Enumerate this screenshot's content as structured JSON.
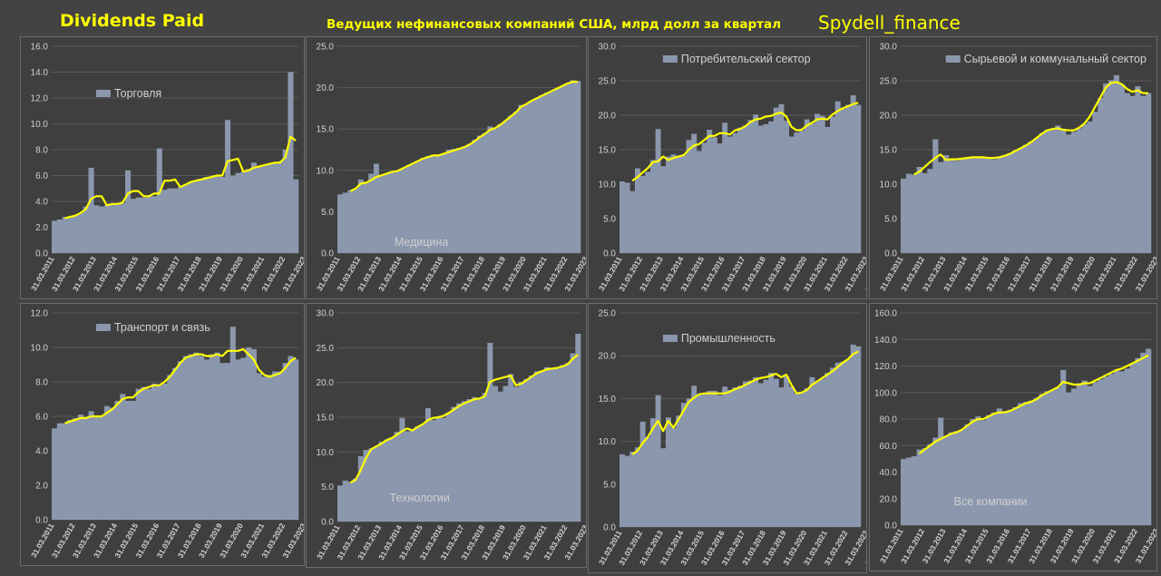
{
  "header": {
    "title": "Dividends Paid",
    "subtitle": "Ведущих нефинансовых компаний США, млрд долл за квартал",
    "brand": "Spydell_finance"
  },
  "colors": {
    "bar": "#8b97ad",
    "trend": "#ffff00",
    "background": "#3f3f3f",
    "grid": "#5a5a5a",
    "text": "#d0d0d0"
  },
  "x_tick_labels": [
    "31.03.2011",
    "31.03.2012",
    "31.03.2013",
    "31.03.2014",
    "31.03.2015",
    "31.03.2016",
    "31.03.2017",
    "31.03.2018",
    "31.03.2019",
    "31.03.2020",
    "31.03.2021",
    "31.03.2022",
    "31.03.2023",
    "31.03.2024"
  ],
  "chart_data": [
    {
      "type": "bar",
      "legend": "Торговля",
      "ylim": [
        0,
        16
      ],
      "ystep": 2,
      "legend_pos": "upper-left",
      "values": [
        2.5,
        2.6,
        2.8,
        2.8,
        2.9,
        3.1,
        3.6,
        6.6,
        3.7,
        3.6,
        3.7,
        3.8,
        3.8,
        3.9,
        6.4,
        4.2,
        4.3,
        4.3,
        4.4,
        4.4,
        8.1,
        4.9,
        5.0,
        5.0,
        5.1,
        5.3,
        5.5,
        5.6,
        5.7,
        5.9,
        5.9,
        6.0,
        5.9,
        10.3,
        6.0,
        6.2,
        6.3,
        6.5,
        7.0,
        6.7,
        6.8,
        6.9,
        7.0,
        7.1,
        8.0,
        14.0,
        5.7
      ],
      "trend": [
        null,
        null,
        2.7,
        2.8,
        2.9,
        3.1,
        3.4,
        4.2,
        4.4,
        4.4,
        3.7,
        3.8,
        3.8,
        3.9,
        4.6,
        4.8,
        4.8,
        4.4,
        4.4,
        4.6,
        4.6,
        5.6,
        5.6,
        5.7,
        5.1,
        5.3,
        5.5,
        5.6,
        5.7,
        5.8,
        5.9,
        6.0,
        6.0,
        7.1,
        7.2,
        7.3,
        6.3,
        6.4,
        6.6,
        6.7,
        6.8,
        6.9,
        7.0,
        7.0,
        7.4,
        9.0,
        8.7
      ]
    },
    {
      "type": "bar",
      "legend": "Медицина",
      "ylim": [
        0,
        25
      ],
      "ystep": 5,
      "legend_pos": "lower-center",
      "values": [
        7.1,
        7.3,
        7.6,
        7.8,
        8.9,
        8.6,
        9.6,
        10.8,
        9.4,
        9.6,
        9.8,
        9.9,
        10.2,
        10.5,
        10.8,
        11.1,
        11.5,
        11.7,
        11.9,
        11.8,
        12.0,
        12.5,
        12.6,
        12.7,
        12.9,
        13.2,
        13.7,
        14.2,
        14.5,
        15.3,
        15.1,
        15.6,
        16.0,
        16.6,
        17.1,
        17.9,
        18.0,
        18.4,
        18.7,
        19.1,
        19.4,
        19.6,
        19.9,
        20.2,
        20.5,
        20.9,
        20.8
      ],
      "trend": [
        null,
        null,
        7.5,
        7.8,
        8.4,
        8.5,
        8.8,
        9.2,
        9.4,
        9.6,
        9.8,
        9.9,
        10.2,
        10.5,
        10.8,
        11.1,
        11.4,
        11.6,
        11.8,
        11.8,
        12.0,
        12.2,
        12.4,
        12.6,
        12.8,
        13.1,
        13.5,
        14.0,
        14.4,
        14.9,
        15.1,
        15.5,
        16.0,
        16.5,
        17.0,
        17.7,
        18.0,
        18.4,
        18.7,
        19.0,
        19.3,
        19.6,
        19.9,
        20.2,
        20.5,
        20.7,
        20.7
      ]
    },
    {
      "type": "bar",
      "legend": "Потребительский сектор",
      "ylim": [
        0,
        30
      ],
      "ystep": 5,
      "legend_pos": "upper-left",
      "values": [
        10.4,
        10.2,
        9.0,
        12.3,
        11.2,
        11.8,
        13.5,
        18.0,
        12.6,
        14.0,
        14.3,
        14.1,
        14.2,
        16.4,
        17.3,
        14.8,
        16.0,
        17.9,
        16.8,
        15.9,
        18.9,
        16.9,
        17.4,
        18.2,
        18.5,
        19.3,
        20.1,
        18.5,
        18.7,
        19.1,
        21.1,
        21.6,
        19.2,
        16.9,
        17.5,
        17.8,
        19.4,
        18.8,
        20.2,
        19.9,
        18.3,
        19.8,
        22.0,
        20.9,
        21.5,
        22.9,
        21.5
      ],
      "trend": [
        null,
        null,
        10.5,
        11.0,
        11.7,
        12.3,
        13.2,
        13.3,
        14.0,
        13.5,
        13.8,
        14.0,
        14.2,
        15.0,
        15.6,
        15.8,
        16.4,
        17.0,
        17.0,
        17.4,
        17.4,
        17.2,
        17.8,
        18.0,
        18.4,
        19.0,
        19.4,
        19.5,
        19.8,
        19.9,
        20.2,
        20.4,
        19.8,
        18.3,
        17.8,
        17.9,
        18.5,
        18.9,
        19.4,
        19.5,
        19.4,
        20.1,
        20.6,
        21.0,
        21.3,
        21.6,
        21.8
      ]
    },
    {
      "type": "bar",
      "legend": "Сырьевой и коммунальный сектор",
      "ylim": [
        0,
        30
      ],
      "ystep": 5,
      "legend_pos": "upper-left",
      "values": [
        10.8,
        11.5,
        11.4,
        12.5,
        11.6,
        12.2,
        16.5,
        13.2,
        14.2,
        13.5,
        13.4,
        13.6,
        13.7,
        13.8,
        13.9,
        14.0,
        13.9,
        13.6,
        13.9,
        14.2,
        14.5,
        14.9,
        15.2,
        15.7,
        16.2,
        16.7,
        17.4,
        17.9,
        18.0,
        18.5,
        18.0,
        17.2,
        17.6,
        18.1,
        18.7,
        19.1,
        20.5,
        22.5,
        24.6,
        25.1,
        25.8,
        24.5,
        23.2,
        22.8,
        24.2,
        22.8,
        23.2
      ],
      "trend": [
        null,
        null,
        11.4,
        11.8,
        12.5,
        13.2,
        13.8,
        14.3,
        13.5,
        13.6,
        13.6,
        13.7,
        13.8,
        13.9,
        13.9,
        13.9,
        13.8,
        13.8,
        13.9,
        14.1,
        14.4,
        14.8,
        15.2,
        15.6,
        16.1,
        16.7,
        17.3,
        17.8,
        18.0,
        18.1,
        17.9,
        17.8,
        17.8,
        18.2,
        18.8,
        19.8,
        21.2,
        22.6,
        24.0,
        24.7,
        24.8,
        24.5,
        23.8,
        23.4,
        23.6,
        23.2,
        23.2
      ]
    },
    {
      "type": "bar",
      "legend": "Транспорт и связь",
      "ylim": [
        0,
        12
      ],
      "ystep": 2,
      "legend_pos": "upper-left",
      "values": [
        5.3,
        5.6,
        5.6,
        5.8,
        5.9,
        6.1,
        5.9,
        6.3,
        6.0,
        6.0,
        6.6,
        6.5,
        6.9,
        7.3,
        6.9,
        6.9,
        7.6,
        7.7,
        7.6,
        7.9,
        7.8,
        7.9,
        8.4,
        8.8,
        9.2,
        9.5,
        9.6,
        9.7,
        9.5,
        9.3,
        9.6,
        9.7,
        9.1,
        9.1,
        11.2,
        9.3,
        9.4,
        10.0,
        9.9,
        8.5,
        8.3,
        8.4,
        8.6,
        8.6,
        9.1,
        9.5,
        9.3
      ],
      "trend": [
        null,
        null,
        5.6,
        5.7,
        5.8,
        5.9,
        5.9,
        6.0,
        6.0,
        6.0,
        6.2,
        6.4,
        6.7,
        7.0,
        7.1,
        7.1,
        7.4,
        7.6,
        7.7,
        7.8,
        7.8,
        8.0,
        8.3,
        8.7,
        9.1,
        9.4,
        9.5,
        9.6,
        9.6,
        9.5,
        9.5,
        9.6,
        9.5,
        9.8,
        9.8,
        9.8,
        9.9,
        9.6,
        9.3,
        8.7,
        8.4,
        8.3,
        8.4,
        8.5,
        8.8,
        9.2,
        9.4
      ]
    },
    {
      "type": "bar",
      "legend": "Технологии",
      "ylim": [
        0,
        30
      ],
      "ystep": 5,
      "legend_pos": "lower-left",
      "values": [
        5.2,
        5.9,
        5.7,
        6.2,
        9.4,
        10.3,
        10.5,
        10.8,
        11.5,
        11.8,
        12.1,
        12.9,
        14.9,
        13.0,
        13.2,
        13.7,
        14.0,
        16.3,
        14.6,
        15.0,
        14.9,
        15.7,
        16.5,
        17.0,
        17.3,
        17.6,
        17.9,
        17.6,
        18.5,
        25.7,
        19.5,
        18.7,
        19.5,
        21.2,
        19.4,
        20.1,
        20.5,
        21.0,
        21.6,
        21.7,
        22.2,
        22.1,
        22.0,
        22.5,
        22.8,
        24.2,
        27.0
      ],
      "trend": [
        null,
        null,
        5.6,
        6.0,
        7.4,
        9.1,
        10.4,
        10.8,
        11.2,
        11.7,
        12.0,
        12.5,
        13.0,
        13.4,
        13.1,
        13.6,
        14.0,
        14.6,
        14.9,
        15.0,
        15.2,
        15.6,
        16.1,
        16.6,
        17.0,
        17.3,
        17.6,
        17.7,
        18.0,
        20.1,
        20.4,
        20.6,
        20.8,
        21.0,
        19.6,
        19.8,
        20.3,
        20.8,
        21.3,
        21.6,
        21.9,
        22.0,
        22.1,
        22.3,
        22.6,
        23.4,
        24.0
      ]
    },
    {
      "type": "bar",
      "legend": "Промышленность",
      "ylim": [
        0,
        25
      ],
      "ystep": 5,
      "legend_pos": "upper-left",
      "values": [
        8.5,
        8.3,
        8.8,
        9.3,
        12.3,
        10.5,
        12.7,
        15.4,
        9.2,
        12.8,
        11.6,
        13.0,
        14.5,
        15.0,
        16.5,
        15.4,
        15.6,
        15.9,
        15.9,
        15.4,
        16.4,
        16.0,
        16.3,
        16.5,
        17.0,
        17.1,
        17.5,
        16.8,
        17.2,
        18.0,
        17.3,
        16.3,
        17.6,
        16.4,
        15.6,
        15.8,
        16.2,
        17.5,
        17.0,
        17.3,
        18.0,
        18.6,
        19.2,
        19.3,
        19.6,
        21.3,
        21.1
      ],
      "trend": [
        null,
        null,
        8.5,
        8.9,
        9.8,
        10.5,
        11.5,
        12.4,
        11.2,
        12.4,
        11.6,
        12.6,
        13.6,
        14.6,
        15.1,
        15.5,
        15.6,
        15.6,
        15.6,
        15.6,
        15.6,
        15.8,
        16.1,
        16.3,
        16.6,
        16.9,
        17.2,
        17.4,
        17.5,
        17.7,
        17.9,
        17.5,
        17.8,
        16.6,
        15.6,
        15.7,
        16.0,
        16.6,
        17.0,
        17.4,
        17.8,
        18.2,
        18.7,
        19.2,
        19.6,
        20.2,
        20.5
      ]
    },
    {
      "type": "bar",
      "legend": "Все компании",
      "ylim": [
        0,
        160
      ],
      "ystep": 20,
      "legend_pos": "lower-left",
      "values": [
        50,
        51,
        52,
        57,
        58,
        61,
        66,
        81,
        67,
        70,
        71,
        72,
        76,
        80,
        82,
        79,
        83,
        85,
        88,
        86,
        87,
        89,
        92,
        93,
        94,
        96,
        99,
        101,
        102,
        104,
        117,
        100,
        103,
        107,
        109,
        105,
        108,
        110,
        112,
        114,
        117,
        116,
        118,
        122,
        126,
        130,
        133
      ],
      "trend": [
        null,
        null,
        null,
        54,
        57,
        60,
        63,
        65,
        67,
        69,
        70,
        72,
        75,
        78,
        80,
        80,
        82,
        84,
        85,
        85,
        86,
        88,
        90,
        92,
        93,
        95,
        98,
        100,
        102,
        104,
        108,
        107,
        106,
        106,
        107,
        107,
        109,
        111,
        113,
        115,
        117,
        118,
        120,
        122,
        124,
        126,
        128
      ]
    }
  ]
}
